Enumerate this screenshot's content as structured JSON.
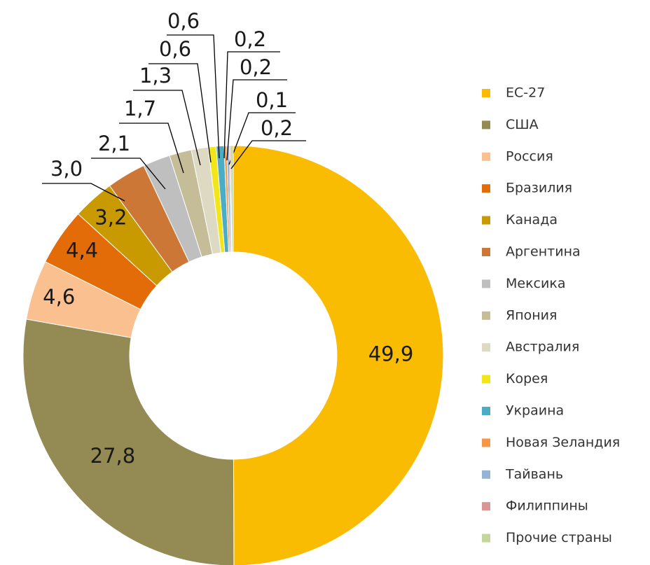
{
  "chart_data": {
    "type": "pie",
    "donut": true,
    "categories": [
      "ЕС-27",
      "США",
      "Россия",
      "Бразилия",
      "Канада",
      "Аргентина",
      "Мексика",
      "Япония",
      "Австралия",
      "Корея",
      "Украина",
      "Новая Зеландия",
      "Тайвань",
      "Филиппины",
      "Прочие страны"
    ],
    "values": [
      49.9,
      27.8,
      4.6,
      4.4,
      3.2,
      3.0,
      2.1,
      1.7,
      1.3,
      0.6,
      0.6,
      0.2,
      0.2,
      0.1,
      0.2
    ],
    "value_labels": [
      "49,9",
      "27,8",
      "4,6",
      "4,4",
      "3,2",
      "3,0",
      "2,1",
      "1,7",
      "1,3",
      "0,6",
      "0,6",
      "0,2",
      "0,2",
      "0,1",
      "0,2"
    ],
    "colors": [
      "#f9bc02",
      "#948a54",
      "#fac090",
      "#e36c09",
      "#c89a00",
      "#cd7737",
      "#bfbfbf",
      "#c4bd97",
      "#ddd9c3",
      "#f2e61a",
      "#4bacc6",
      "#f79646",
      "#95b3d7",
      "#d99694",
      "#c3d69b"
    ],
    "legend": "right"
  }
}
